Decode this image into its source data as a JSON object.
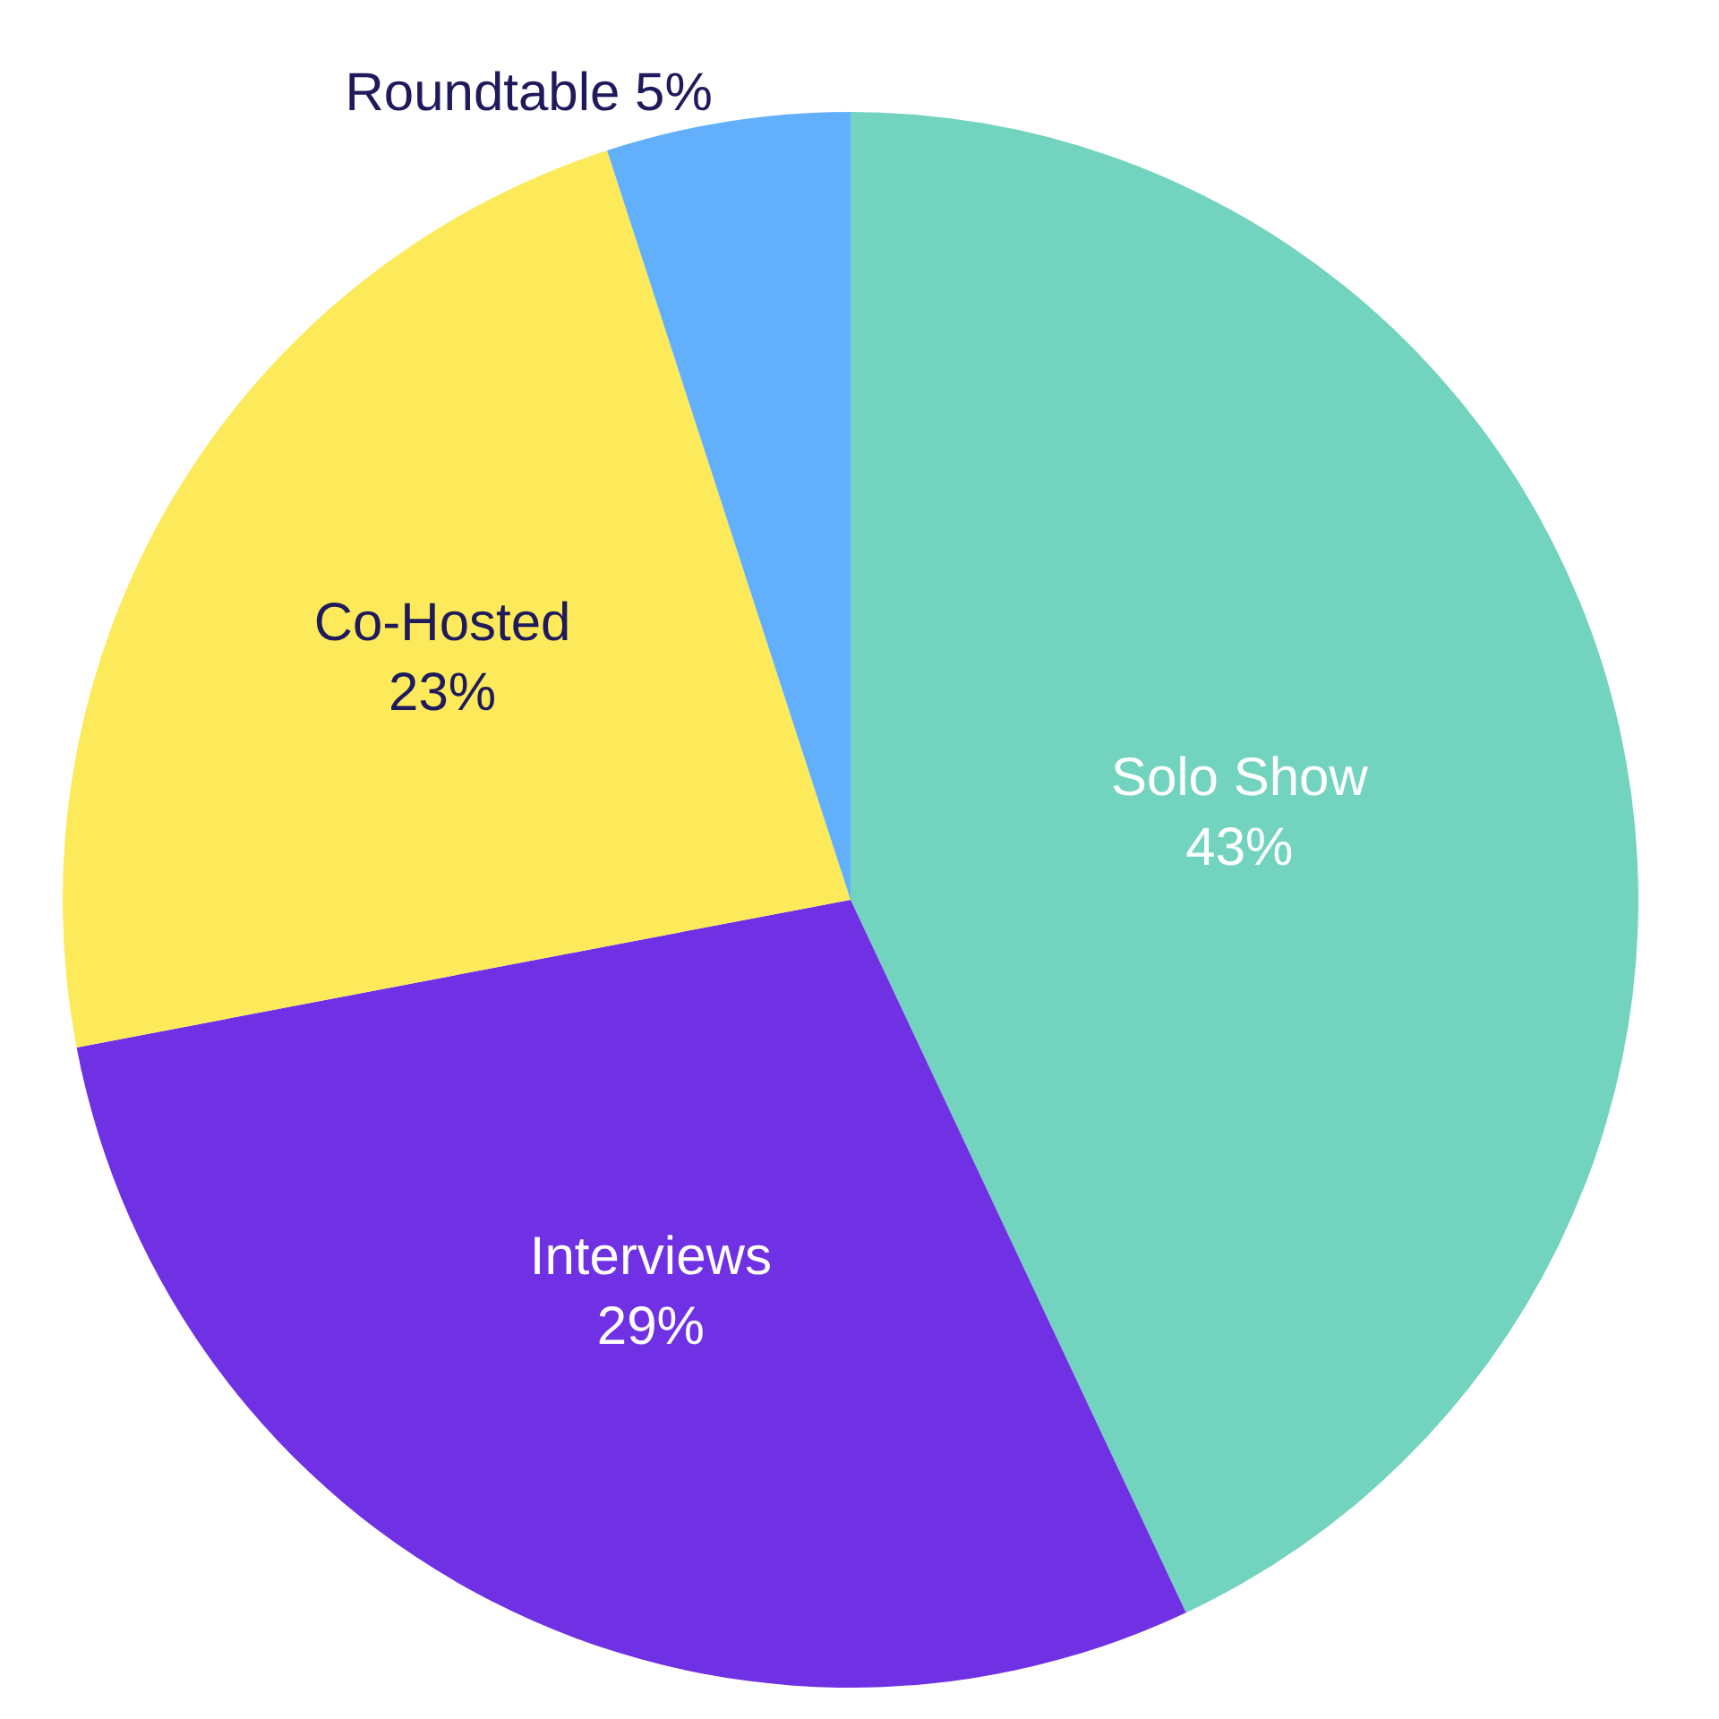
{
  "chart_data": {
    "type": "pie",
    "categories": [
      "Solo Show",
      "Interviews",
      "Co-Hosted",
      "Roundtable"
    ],
    "values": [
      43,
      29,
      23,
      5
    ],
    "value_labels": [
      "43%",
      "29%",
      "23%",
      "5%"
    ],
    "colors": [
      "#72d3be",
      "#7030e3",
      "#fcea5a",
      "#62b0fb"
    ],
    "legend": false
  }
}
